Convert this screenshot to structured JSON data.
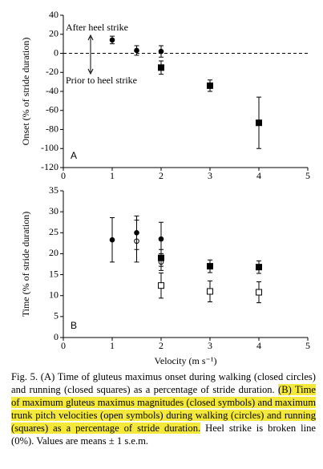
{
  "chart_data": [
    {
      "type": "scatter",
      "panel_label": "A",
      "y_label": "Onset (% of stride duration)",
      "xlim": [
        0,
        5
      ],
      "xticks": [
        0,
        1,
        2,
        3,
        4,
        5
      ],
      "ylim": [
        -120,
        40
      ],
      "yticks": [
        -120,
        -100,
        -80,
        -60,
        -40,
        -20,
        0,
        20,
        40
      ],
      "hline": 0,
      "annotations": [
        "After heel strike",
        "Prior to heel strike"
      ],
      "series": [
        {
          "marker": "circle",
          "filled": true,
          "color": "#000000",
          "x": [
            1,
            1.5,
            2
          ],
          "values": [
            14,
            3,
            2
          ],
          "errors": [
            4,
            5,
            6
          ]
        },
        {
          "marker": "square",
          "filled": true,
          "color": "#000000",
          "x": [
            2,
            3,
            4
          ],
          "values": [
            -15,
            -34,
            -73
          ],
          "errors": [
            7,
            6,
            27
          ]
        }
      ]
    },
    {
      "type": "scatter",
      "panel_label": "B",
      "y_label": "Time (% of stride duration)",
      "x_label": "Velocity (m s⁻¹)",
      "xlim": [
        0,
        5
      ],
      "xticks": [
        0,
        1,
        2,
        3,
        4,
        5
      ],
      "ylim": [
        0,
        35
      ],
      "yticks": [
        0,
        5,
        10,
        15,
        20,
        25,
        30,
        35
      ],
      "series": [
        {
          "marker": "circle",
          "filled": false,
          "color": "#000000",
          "x": [
            1.5,
            2
          ],
          "values": [
            23,
            18
          ],
          "errors": [
            5,
            2
          ]
        },
        {
          "marker": "circle",
          "filled": true,
          "color": "#000000",
          "x": [
            1,
            1.5,
            2
          ],
          "values": [
            23.3,
            25,
            23.5
          ],
          "errors": [
            5.3,
            4,
            4
          ]
        },
        {
          "marker": "square",
          "filled": true,
          "color": "#000000",
          "x": [
            2,
            3,
            4
          ],
          "values": [
            19,
            17,
            16.8
          ],
          "errors": [
            2,
            1.5,
            1.5
          ]
        },
        {
          "marker": "square",
          "filled": false,
          "color": "#000000",
          "x": [
            2,
            3,
            4
          ],
          "values": [
            12.4,
            11,
            10.8
          ],
          "errors": [
            3,
            2.5,
            2.5
          ]
        }
      ]
    }
  ],
  "caption": {
    "before": "Fig. 5. (A) Time of gluteus maximus onset during walking (closed circles) and running (closed squares) as a percentage of stride duration. ",
    "highlight": "(B) Time of maximum gluteus maximus magnitudes (closed symbols) and maximum trunk pitch velocities (open symbols) during walking (circles) and running (squares) as a percentage of stride duration.",
    "after": " Heel strike is broken line (0%). Values are means ± 1 s.e.m."
  }
}
